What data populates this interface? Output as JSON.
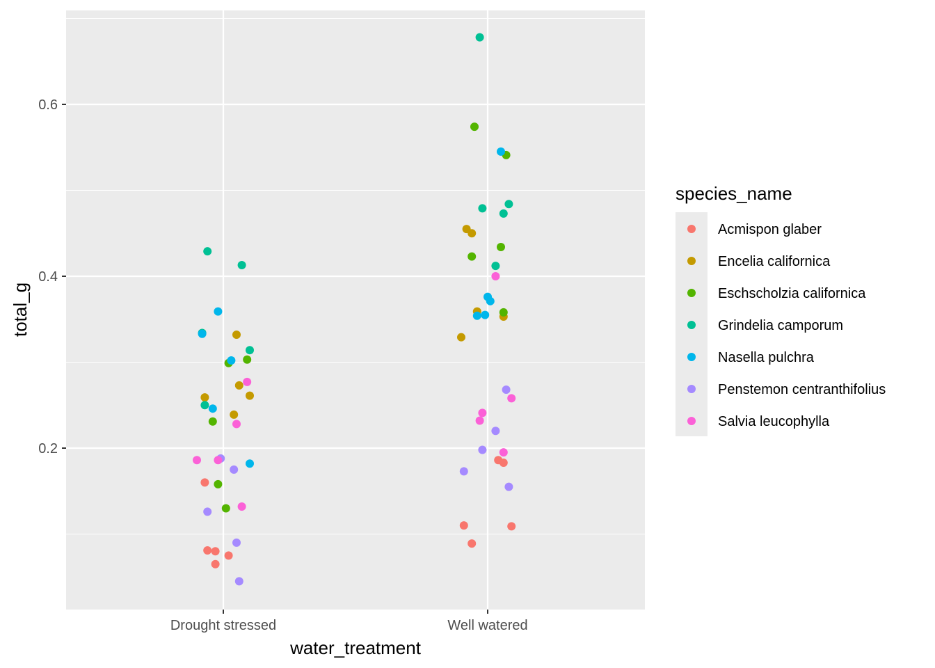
{
  "chart_data": {
    "type": "scatter",
    "title": "",
    "xlabel": "water_treatment",
    "ylabel": "total_g",
    "categories": [
      "Drought stressed",
      "Well watered"
    ],
    "ylim": [
      0.045,
      0.7
    ],
    "y_ticks": [
      0.2,
      0.4,
      0.6
    ],
    "y_tick_labels": [
      "0.2",
      "0.4",
      "0.6"
    ],
    "grid": true,
    "legend": {
      "title": "species_name",
      "position": "right"
    },
    "series": [
      {
        "name": "Acmispon glaber",
        "color": "#F8766D",
        "points": [
          {
            "x": "Drought stressed",
            "jitter": -0.07,
            "y": 0.16
          },
          {
            "x": "Drought stressed",
            "jitter": -0.06,
            "y": 0.081
          },
          {
            "x": "Drought stressed",
            "jitter": -0.03,
            "y": 0.08
          },
          {
            "x": "Drought stressed",
            "jitter": -0.03,
            "y": 0.065
          },
          {
            "x": "Drought stressed",
            "jitter": 0.02,
            "y": 0.075
          },
          {
            "x": "Well watered",
            "jitter": -0.09,
            "y": 0.11
          },
          {
            "x": "Well watered",
            "jitter": -0.06,
            "y": 0.089
          },
          {
            "x": "Well watered",
            "jitter": 0.04,
            "y": 0.186
          },
          {
            "x": "Well watered",
            "jitter": 0.06,
            "y": 0.183
          },
          {
            "x": "Well watered",
            "jitter": 0.09,
            "y": 0.109
          }
        ]
      },
      {
        "name": "Encelia californica",
        "color": "#C49A00",
        "points": [
          {
            "x": "Drought stressed",
            "jitter": -0.07,
            "y": 0.259
          },
          {
            "x": "Drought stressed",
            "jitter": 0.04,
            "y": 0.239
          },
          {
            "x": "Drought stressed",
            "jitter": 0.05,
            "y": 0.332
          },
          {
            "x": "Drought stressed",
            "jitter": 0.06,
            "y": 0.273
          },
          {
            "x": "Drought stressed",
            "jitter": 0.1,
            "y": 0.261
          },
          {
            "x": "Well watered",
            "jitter": -0.1,
            "y": 0.329
          },
          {
            "x": "Well watered",
            "jitter": -0.08,
            "y": 0.455
          },
          {
            "x": "Well watered",
            "jitter": -0.06,
            "y": 0.45
          },
          {
            "x": "Well watered",
            "jitter": -0.04,
            "y": 0.359
          },
          {
            "x": "Well watered",
            "jitter": 0.06,
            "y": 0.353
          }
        ]
      },
      {
        "name": "Eschscholzia californica",
        "color": "#53B400",
        "points": [
          {
            "x": "Drought stressed",
            "jitter": -0.04,
            "y": 0.231
          },
          {
            "x": "Drought stressed",
            "jitter": -0.02,
            "y": 0.158
          },
          {
            "x": "Drought stressed",
            "jitter": 0.01,
            "y": 0.13
          },
          {
            "x": "Drought stressed",
            "jitter": 0.02,
            "y": 0.299
          },
          {
            "x": "Drought stressed",
            "jitter": 0.09,
            "y": 0.303
          },
          {
            "x": "Well watered",
            "jitter": -0.06,
            "y": 0.423
          },
          {
            "x": "Well watered",
            "jitter": -0.05,
            "y": 0.574
          },
          {
            "x": "Well watered",
            "jitter": 0.05,
            "y": 0.434
          },
          {
            "x": "Well watered",
            "jitter": 0.06,
            "y": 0.358
          },
          {
            "x": "Well watered",
            "jitter": 0.07,
            "y": 0.541
          }
        ]
      },
      {
        "name": "Grindelia camporum",
        "color": "#00C094",
        "points": [
          {
            "x": "Drought stressed",
            "jitter": -0.07,
            "y": 0.25
          },
          {
            "x": "Drought stressed",
            "jitter": -0.06,
            "y": 0.429
          },
          {
            "x": "Drought stressed",
            "jitter": -0.08,
            "y": 0.334
          },
          {
            "x": "Drought stressed",
            "jitter": 0.07,
            "y": 0.413
          },
          {
            "x": "Drought stressed",
            "jitter": 0.1,
            "y": 0.314
          },
          {
            "x": "Well watered",
            "jitter": -0.03,
            "y": 0.678
          },
          {
            "x": "Well watered",
            "jitter": -0.02,
            "y": 0.479
          },
          {
            "x": "Well watered",
            "jitter": 0.03,
            "y": 0.412
          },
          {
            "x": "Well watered",
            "jitter": 0.06,
            "y": 0.473
          },
          {
            "x": "Well watered",
            "jitter": 0.08,
            "y": 0.484
          }
        ]
      },
      {
        "name": "Nasella pulchra",
        "color": "#00B6EB",
        "points": [
          {
            "x": "Drought stressed",
            "jitter": -0.08,
            "y": 0.333
          },
          {
            "x": "Drought stressed",
            "jitter": -0.04,
            "y": 0.246
          },
          {
            "x": "Drought stressed",
            "jitter": -0.02,
            "y": 0.359
          },
          {
            "x": "Drought stressed",
            "jitter": 0.03,
            "y": 0.302
          },
          {
            "x": "Drought stressed",
            "jitter": 0.1,
            "y": 0.182
          },
          {
            "x": "Well watered",
            "jitter": -0.04,
            "y": 0.354
          },
          {
            "x": "Well watered",
            "jitter": -0.01,
            "y": 0.355
          },
          {
            "x": "Well watered",
            "jitter": 0.0,
            "y": 0.376
          },
          {
            "x": "Well watered",
            "jitter": 0.01,
            "y": 0.371
          },
          {
            "x": "Well watered",
            "jitter": 0.05,
            "y": 0.545
          }
        ]
      },
      {
        "name": "Penstemon centranthifolius",
        "color": "#A58AFF",
        "points": [
          {
            "x": "Drought stressed",
            "jitter": -0.06,
            "y": 0.126
          },
          {
            "x": "Drought stressed",
            "jitter": -0.01,
            "y": 0.188
          },
          {
            "x": "Drought stressed",
            "jitter": 0.04,
            "y": 0.175
          },
          {
            "x": "Drought stressed",
            "jitter": 0.05,
            "y": 0.09
          },
          {
            "x": "Drought stressed",
            "jitter": 0.06,
            "y": 0.045
          },
          {
            "x": "Well watered",
            "jitter": -0.09,
            "y": 0.173
          },
          {
            "x": "Well watered",
            "jitter": -0.02,
            "y": 0.198
          },
          {
            "x": "Well watered",
            "jitter": 0.03,
            "y": 0.22
          },
          {
            "x": "Well watered",
            "jitter": 0.07,
            "y": 0.268
          },
          {
            "x": "Well watered",
            "jitter": 0.08,
            "y": 0.155
          }
        ]
      },
      {
        "name": "Salvia leucophylla",
        "color": "#FB61D7",
        "points": [
          {
            "x": "Drought stressed",
            "jitter": -0.1,
            "y": 0.186
          },
          {
            "x": "Drought stressed",
            "jitter": -0.02,
            "y": 0.186
          },
          {
            "x": "Drought stressed",
            "jitter": 0.05,
            "y": 0.228
          },
          {
            "x": "Drought stressed",
            "jitter": 0.07,
            "y": 0.132
          },
          {
            "x": "Drought stressed",
            "jitter": 0.09,
            "y": 0.277
          },
          {
            "x": "Well watered",
            "jitter": -0.03,
            "y": 0.232
          },
          {
            "x": "Well watered",
            "jitter": -0.02,
            "y": 0.241
          },
          {
            "x": "Well watered",
            "jitter": 0.03,
            "y": 0.4
          },
          {
            "x": "Well watered",
            "jitter": 0.06,
            "y": 0.195
          },
          {
            "x": "Well watered",
            "jitter": 0.09,
            "y": 0.258
          }
        ]
      }
    ]
  }
}
